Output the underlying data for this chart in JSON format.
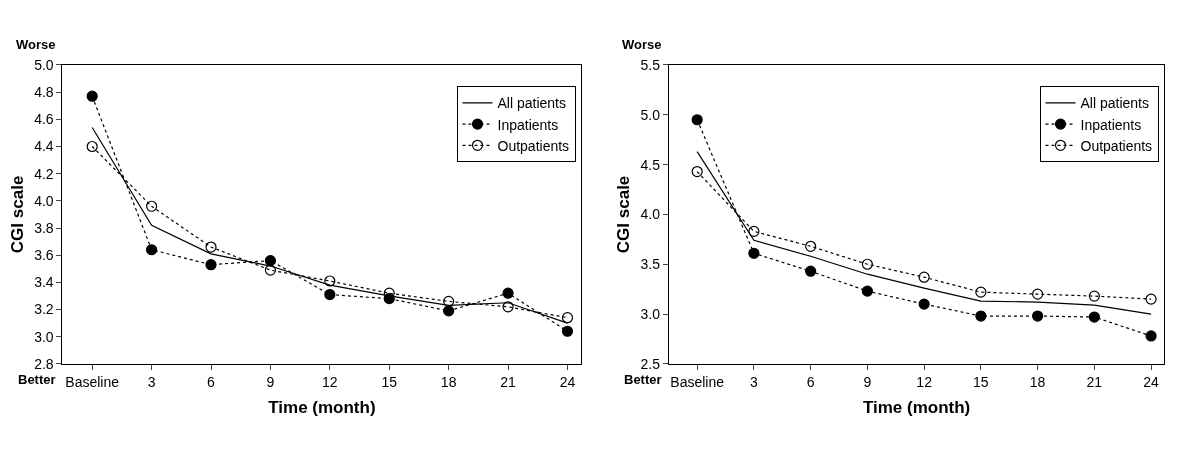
{
  "chart_data": [
    {
      "type": "line",
      "xlabel": "Time (month)",
      "ylabel": "CGI scale",
      "annotations": [
        "Worse",
        "Better"
      ],
      "x": [
        0,
        3,
        6,
        9,
        12,
        15,
        18,
        21,
        24
      ],
      "xlim": [
        -1.5,
        24.7
      ],
      "xticks": [
        {
          "value": 0,
          "label": "Baseline"
        },
        3,
        6,
        9,
        12,
        15,
        18,
        21,
        24
      ],
      "ylim": [
        2.8,
        5.0
      ],
      "yticks": [
        {
          "value": 2.8,
          "label": "2.8"
        },
        {
          "value": 3.0,
          "label": "3.0"
        },
        {
          "value": 3.2,
          "label": "3.2"
        },
        {
          "value": 3.4,
          "label": "3.4"
        },
        {
          "value": 3.6,
          "label": "3.6"
        },
        {
          "value": 3.8,
          "label": "3.8"
        },
        {
          "value": 4.0,
          "label": "4.0"
        },
        {
          "value": 4.2,
          "label": "4.2"
        },
        {
          "value": 4.4,
          "label": "4.4"
        },
        {
          "value": 4.6,
          "label": "4.6"
        },
        {
          "value": 4.8,
          "label": "4.8"
        },
        {
          "value": 5.0,
          "label": "5.0"
        }
      ],
      "legend": "top right",
      "series": [
        {
          "name": "All patients",
          "color": "#000000",
          "marker": "none",
          "line_style": "solid",
          "values": [
            4.54,
            3.82,
            3.61,
            3.52,
            3.38,
            3.3,
            3.23,
            3.25,
            3.1
          ]
        },
        {
          "name": "Inpatients",
          "color": "#000000",
          "marker": "circle",
          "line_style": "dotted",
          "values": [
            4.77,
            3.64,
            3.53,
            3.56,
            3.31,
            3.28,
            3.19,
            3.32,
            3.04
          ]
        },
        {
          "name": "Outpatients",
          "color": "#000000",
          "marker": "circle-open",
          "line_style": "dotted",
          "values": [
            4.4,
            3.96,
            3.66,
            3.49,
            3.41,
            3.32,
            3.26,
            3.22,
            3.14
          ]
        }
      ]
    },
    {
      "type": "line",
      "xlabel": "Time (month)",
      "ylabel": "CGI scale",
      "annotations": [
        "Worse",
        "Better"
      ],
      "x": [
        0,
        3,
        6,
        9,
        12,
        15,
        18,
        21,
        24
      ],
      "xlim": [
        -1.5,
        24.7
      ],
      "xticks": [
        {
          "value": 0,
          "label": "Baseline"
        },
        3,
        6,
        9,
        12,
        15,
        18,
        21,
        24
      ],
      "ylim": [
        2.5,
        5.5
      ],
      "yticks": [
        2.5,
        {
          "value": 3.0,
          "label": "3.0"
        },
        3.5,
        {
          "value": 4.0,
          "label": "4.0"
        },
        4.5,
        {
          "value": 5.0,
          "label": "5.0"
        },
        5.5
      ],
      "legend": "top right",
      "series": [
        {
          "name": "All patients",
          "color": "#000000",
          "marker": "none",
          "line_style": "solid",
          "values": [
            4.63,
            3.74,
            3.58,
            3.4,
            3.26,
            3.13,
            3.12,
            3.09,
            3.0
          ]
        },
        {
          "name": "Inpatients",
          "color": "#000000",
          "marker": "circle",
          "line_style": "dotted",
          "values": [
            4.95,
            3.61,
            3.43,
            3.23,
            3.1,
            2.98,
            2.98,
            2.97,
            2.78
          ]
        },
        {
          "name": "Outpatients",
          "color": "#000000",
          "marker": "circle-open",
          "line_style": "dotted",
          "values": [
            4.43,
            3.83,
            3.68,
            3.5,
            3.37,
            3.22,
            3.2,
            3.18,
            3.15
          ]
        }
      ]
    }
  ]
}
